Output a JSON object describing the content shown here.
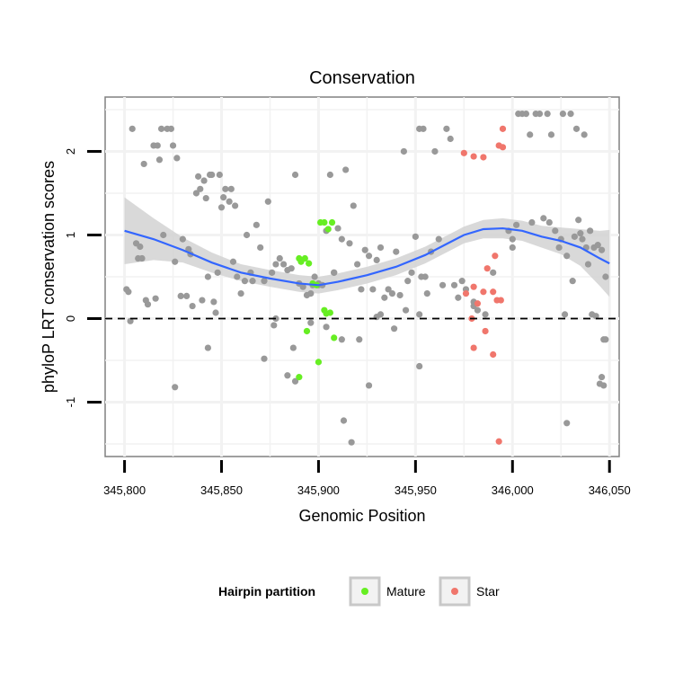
{
  "chart_data": {
    "type": "scatter",
    "title": "Conservation",
    "xlabel": "Genomic Position",
    "ylabel": "phyloP LRT conservation scores",
    "xlim": [
      345790,
      346055
    ],
    "ylim": [
      -1.65,
      2.65
    ],
    "x_ticks": [
      345800,
      345850,
      345900,
      345950,
      346000,
      346050
    ],
    "x_tick_labels": [
      "345,800",
      "345,850",
      "345,900",
      "345,950",
      "346,000",
      "346,050"
    ],
    "y_ticks": [
      -1,
      0,
      1,
      2
    ],
    "y_tick_labels": [
      "-1",
      "0",
      "1",
      "2"
    ],
    "grid": true,
    "reference_line": {
      "y": 0,
      "style": "dashed"
    },
    "legend": {
      "title": "Hairpin partition",
      "position": "bottom",
      "entries": [
        {
          "label": "Mature",
          "color": "#66ee22"
        },
        {
          "label": "Star",
          "color": "#f0766c"
        }
      ]
    },
    "colors": {
      "other": "#999999",
      "mature": "#66ee22",
      "star": "#f0766c",
      "smooth": "#3366ff",
      "band": "#d2d2d2"
    },
    "series": [
      {
        "name": "Other",
        "points": [
          [
            345801,
            0.35
          ],
          [
            345802,
            0.32
          ],
          [
            345804,
            2.27
          ],
          [
            345806,
            0.9
          ],
          [
            345807,
            0.72
          ],
          [
            345808,
            0.86
          ],
          [
            345809,
            0.72
          ],
          [
            345810,
            1.85
          ],
          [
            345811,
            0.22
          ],
          [
            345812,
            0.17
          ],
          [
            345815,
            2.07
          ],
          [
            345816,
            0.24
          ],
          [
            345817,
            2.07
          ],
          [
            345818,
            1.9
          ],
          [
            345819,
            2.27
          ],
          [
            345820,
            1.0
          ],
          [
            345822,
            2.27
          ],
          [
            345824,
            2.27
          ],
          [
            345825,
            2.07
          ],
          [
            345826,
            0.68
          ],
          [
            345827,
            1.92
          ],
          [
            345829,
            0.27
          ],
          [
            345830,
            0.95
          ],
          [
            345832,
            0.27
          ],
          [
            345833,
            0.83
          ],
          [
            345834,
            0.77
          ],
          [
            345835,
            0.15
          ],
          [
            345837,
            1.5
          ],
          [
            345838,
            1.7
          ],
          [
            345839,
            1.55
          ],
          [
            345840,
            0.22
          ],
          [
            345841,
            1.65
          ],
          [
            345842,
            1.44
          ],
          [
            345843,
            0.5
          ],
          [
            345844,
            1.72
          ],
          [
            345845,
            1.72
          ],
          [
            345846,
            0.2
          ],
          [
            345847,
            0.07
          ],
          [
            345848,
            0.55
          ],
          [
            345849,
            1.72
          ],
          [
            345850,
            1.33
          ],
          [
            345851,
            1.45
          ],
          [
            345852,
            1.55
          ],
          [
            345854,
            1.4
          ],
          [
            345855,
            1.55
          ],
          [
            345856,
            0.68
          ],
          [
            345857,
            1.35
          ],
          [
            345858,
            0.5
          ],
          [
            345860,
            0.3
          ],
          [
            345862,
            0.45
          ],
          [
            345863,
            1.0
          ],
          [
            345865,
            0.55
          ],
          [
            345866,
            0.45
          ],
          [
            345868,
            1.12
          ],
          [
            345870,
            0.85
          ],
          [
            345872,
            0.45
          ],
          [
            345874,
            1.4
          ],
          [
            345876,
            0.55
          ],
          [
            345878,
            0.65
          ],
          [
            345880,
            0.72
          ],
          [
            345882,
            0.65
          ],
          [
            345884,
            0.58
          ],
          [
            345886,
            0.6
          ],
          [
            345888,
            1.72
          ],
          [
            345890,
            0.42
          ],
          [
            345892,
            0.38
          ],
          [
            345894,
            0.28
          ],
          [
            345896,
            0.3
          ],
          [
            345898,
            0.5
          ],
          [
            345900,
            0.4
          ],
          [
            345902,
            0.4
          ],
          [
            345904,
            1.05
          ],
          [
            345906,
            1.72
          ],
          [
            345908,
            0.55
          ],
          [
            345910,
            1.08
          ],
          [
            345912,
            0.95
          ],
          [
            345914,
            1.78
          ],
          [
            345916,
            0.9
          ],
          [
            345918,
            1.35
          ],
          [
            345920,
            0.65
          ],
          [
            345922,
            0.35
          ],
          [
            345924,
            0.82
          ],
          [
            345926,
            0.75
          ],
          [
            345928,
            0.35
          ],
          [
            345930,
            0.7
          ],
          [
            345932,
            0.85
          ],
          [
            345934,
            0.25
          ],
          [
            345936,
            0.35
          ],
          [
            345938,
            0.3
          ],
          [
            345940,
            0.8
          ],
          [
            345942,
            0.28
          ],
          [
            345944,
            2.0
          ],
          [
            345946,
            0.45
          ],
          [
            345948,
            0.55
          ],
          [
            345950,
            0.98
          ],
          [
            345952,
            2.27
          ],
          [
            345953,
            0.5
          ],
          [
            345954,
            2.27
          ],
          [
            345955,
            0.5
          ],
          [
            345956,
            0.3
          ],
          [
            345958,
            0.8
          ],
          [
            345960,
            2.0
          ],
          [
            345962,
            0.95
          ],
          [
            345964,
            0.4
          ],
          [
            345966,
            2.27
          ],
          [
            345968,
            2.15
          ],
          [
            345970,
            0.4
          ],
          [
            345972,
            0.25
          ],
          [
            345974,
            0.45
          ],
          [
            345976,
            0.35
          ],
          [
            345980,
            0.15
          ],
          [
            345982,
            0.1
          ],
          [
            345990,
            0.55
          ],
          [
            345998,
            1.05
          ],
          [
            346000,
            0.95
          ],
          [
            346002,
            1.12
          ],
          [
            346003,
            2.45
          ],
          [
            346005,
            2.45
          ],
          [
            346007,
            2.45
          ],
          [
            346009,
            2.2
          ],
          [
            346010,
            1.15
          ],
          [
            346012,
            2.45
          ],
          [
            346014,
            2.45
          ],
          [
            346016,
            1.2
          ],
          [
            346018,
            2.45
          ],
          [
            346019,
            1.15
          ],
          [
            346020,
            2.2
          ],
          [
            346022,
            1.05
          ],
          [
            346024,
            0.85
          ],
          [
            346026,
            2.45
          ],
          [
            346027,
            0.05
          ],
          [
            346028,
            0.75
          ],
          [
            346030,
            2.45
          ],
          [
            346031,
            0.45
          ],
          [
            346032,
            0.98
          ],
          [
            346034,
            1.18
          ],
          [
            346036,
            0.95
          ],
          [
            346038,
            0.85
          ],
          [
            346040,
            1.05
          ],
          [
            346042,
            0.85
          ],
          [
            346044,
            0.88
          ],
          [
            346046,
            0.82
          ],
          [
            346047,
            -0.25
          ],
          [
            346048,
            0.5
          ],
          [
            346025,
            0.95
          ],
          [
            346033,
            2.27
          ],
          [
            346035,
            1.02
          ],
          [
            346037,
            2.2
          ],
          [
            346039,
            0.65
          ],
          [
            346041,
            0.05
          ],
          [
            346043,
            0.03
          ],
          [
            346045,
            -0.78
          ],
          [
            346046,
            -0.7
          ],
          [
            346047,
            -0.8
          ],
          [
            346048,
            -0.25
          ],
          [
            346028,
            -1.25
          ],
          [
            345986,
            0.05
          ],
          [
            346000,
            0.85
          ],
          [
            345980,
            0.2
          ],
          [
            345803,
            -0.03
          ],
          [
            345826,
            -0.82
          ],
          [
            345843,
            -0.35
          ],
          [
            345877,
            -0.08
          ],
          [
            345884,
            -0.68
          ],
          [
            345888,
            -0.75
          ],
          [
            345896,
            -0.05
          ],
          [
            345904,
            -0.1
          ],
          [
            345912,
            -0.25
          ],
          [
            345913,
            -1.22
          ],
          [
            345917,
            -1.48
          ],
          [
            345921,
            -0.25
          ],
          [
            345926,
            -0.8
          ],
          [
            345930,
            0.02
          ],
          [
            345939,
            -0.12
          ],
          [
            345952,
            -0.57
          ],
          [
            345952,
            0.05
          ],
          [
            345945,
            0.1
          ],
          [
            345932,
            0.05
          ],
          [
            345908,
            0.55
          ],
          [
            345900,
            0.42
          ],
          [
            345897,
            0.4
          ],
          [
            345887,
            -0.35
          ],
          [
            345872,
            -0.48
          ],
          [
            345878,
            0.0
          ]
        ]
      },
      {
        "name": "Mature",
        "points": [
          [
            345890,
            0.72
          ],
          [
            345891,
            0.68
          ],
          [
            345893,
            0.72
          ],
          [
            345895,
            0.66
          ],
          [
            345897,
            0.42
          ],
          [
            345899,
            0.4
          ],
          [
            345901,
            1.15
          ],
          [
            345903,
            1.15
          ],
          [
            345905,
            1.07
          ],
          [
            345907,
            1.15
          ],
          [
            345903,
            0.1
          ],
          [
            345904,
            0.06
          ],
          [
            345906,
            0.07
          ],
          [
            345894,
            -0.15
          ],
          [
            345908,
            -0.23
          ],
          [
            345900,
            -0.52
          ],
          [
            345890,
            -0.7
          ]
        ]
      },
      {
        "name": "Star",
        "points": [
          [
            345975,
            1.98
          ],
          [
            345980,
            1.94
          ],
          [
            345985,
            1.93
          ],
          [
            345991,
            0.75
          ],
          [
            345993,
            2.07
          ],
          [
            345995,
            2.27
          ],
          [
            345995,
            2.05
          ],
          [
            345987,
            0.6
          ],
          [
            345980,
            0.38
          ],
          [
            345982,
            0.18
          ],
          [
            345985,
            0.32
          ],
          [
            345976,
            0.3
          ],
          [
            345990,
            0.32
          ],
          [
            345992,
            0.22
          ],
          [
            345994,
            0.22
          ],
          [
            345980,
            -0.35
          ],
          [
            345986,
            -0.15
          ],
          [
            345979,
            0.0
          ],
          [
            345990,
            -0.43
          ],
          [
            345993,
            -1.47
          ]
        ]
      }
    ],
    "smooth": {
      "x": [
        345800,
        345815,
        345830,
        345845,
        345860,
        345875,
        345890,
        345900,
        345910,
        345925,
        345940,
        345955,
        345965,
        345975,
        345985,
        345995,
        346005,
        346015,
        346025,
        346035,
        346045,
        346050
      ],
      "y": [
        1.05,
        0.95,
        0.82,
        0.67,
        0.55,
        0.48,
        0.42,
        0.4,
        0.44,
        0.52,
        0.62,
        0.76,
        0.88,
        1.0,
        1.07,
        1.08,
        1.05,
        0.98,
        0.93,
        0.85,
        0.72,
        0.66
      ],
      "se": [
        0.4,
        0.25,
        0.15,
        0.12,
        0.1,
        0.1,
        0.1,
        0.1,
        0.1,
        0.1,
        0.1,
        0.1,
        0.1,
        0.1,
        0.11,
        0.12,
        0.12,
        0.13,
        0.16,
        0.22,
        0.33,
        0.4
      ]
    }
  }
}
